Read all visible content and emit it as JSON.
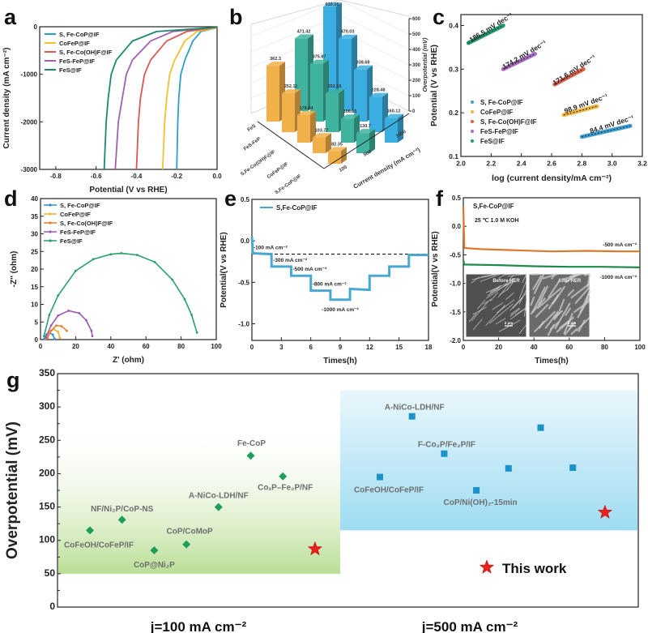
{
  "panel_labels": [
    "a",
    "b",
    "c",
    "d",
    "e",
    "f",
    "g"
  ],
  "chart_data": [
    {
      "panel": "a",
      "type": "line",
      "xlabel": "Potential (V vs RHE)",
      "ylabel": "Current density (mA cm⁻²)",
      "xlim": [
        -0.88,
        0.0
      ],
      "ylim": [
        -3000,
        0
      ],
      "xticks": [
        "-0.8",
        "-0.6",
        "-0.4",
        "-0.2",
        "0.0"
      ],
      "yticks": [
        "0",
        "-1000",
        "-2000",
        "-3000"
      ],
      "legend": "top-left",
      "series": [
        {
          "name": "S, Fe-CoP@IF",
          "color": "#2a9fc9",
          "points": [
            [
              0,
              -20
            ],
            [
              -0.08,
              -100
            ],
            [
              -0.12,
              -300
            ],
            [
              -0.16,
              -700
            ],
            [
              -0.18,
              -1000
            ],
            [
              -0.19,
              -1500
            ],
            [
              -0.195,
              -2000
            ],
            [
              -0.2,
              -3000
            ]
          ]
        },
        {
          "name": "CoFeP@IF",
          "color": "#f2c12e",
          "points": [
            [
              0,
              -20
            ],
            [
              -0.1,
              -100
            ],
            [
              -0.16,
              -300
            ],
            [
              -0.21,
              -700
            ],
            [
              -0.235,
              -1000
            ],
            [
              -0.25,
              -1500
            ],
            [
              -0.26,
              -2000
            ],
            [
              -0.27,
              -3000
            ]
          ]
        },
        {
          "name": "S, Fe-Co(OH)F@IF",
          "color": "#d9584f",
          "points": [
            [
              0,
              -10
            ],
            [
              -0.15,
              -100
            ],
            [
              -0.25,
              -300
            ],
            [
              -0.33,
              -700
            ],
            [
              -0.36,
              -1000
            ],
            [
              -0.38,
              -1500
            ],
            [
              -0.39,
              -2000
            ],
            [
              -0.4,
              -3000
            ]
          ]
        },
        {
          "name": "FeS-FeP@IF",
          "color": "#a05fb0",
          "points": [
            [
              0,
              -10
            ],
            [
              -0.22,
              -100
            ],
            [
              -0.33,
              -300
            ],
            [
              -0.42,
              -700
            ],
            [
              -0.45,
              -1000
            ],
            [
              -0.47,
              -1500
            ],
            [
              -0.49,
              -2000
            ],
            [
              -0.505,
              -3000
            ]
          ]
        },
        {
          "name": "FeS@IF",
          "color": "#1a8a6a",
          "points": [
            [
              0,
              -10
            ],
            [
              -0.3,
              -100
            ],
            [
              -0.42,
              -300
            ],
            [
              -0.5,
              -700
            ],
            [
              -0.525,
              -1000
            ],
            [
              -0.54,
              -1500
            ],
            [
              -0.55,
              -2000
            ],
            [
              -0.56,
              -3000
            ]
          ]
        }
      ]
    },
    {
      "panel": "b",
      "type": "bar3d",
      "zlabel": "Overpotential (mV)",
      "ylabel": "Current density (mA cm⁻²)",
      "zlim": [
        0,
        600
      ],
      "zticks": [
        "0",
        "100",
        "200",
        "300",
        "400",
        "500",
        "600"
      ],
      "categories": [
        "FeS",
        "FeS-FeP",
        "S,Fe-Co(OH)F@IF",
        "CoFeP@IF",
        "S,Fe-CoP@IF"
      ],
      "series": [
        {
          "name": "100",
          "color": "#f2b04a",
          "values": [
            362.3,
            252.11,
            178.84,
            103.77,
            82.35
          ]
        },
        {
          "name": "500",
          "color": "#3fb39d",
          "values": [
            471.42,
            375.87,
            252.15,
            156.85,
            130.7
          ]
        },
        {
          "name": "1000",
          "color": "#3aaee0",
          "values": [
            610.16,
            470.03,
            338.68,
            228.48,
            160.12
          ]
        }
      ]
    },
    {
      "panel": "c",
      "type": "scatter",
      "xlabel": "log (current density/mA cm⁻²)",
      "ylabel": "Potential (V vs RHE)",
      "xlim": [
        2.0,
        3.2
      ],
      "ylim": [
        0.1,
        0.425
      ],
      "xticks": [
        "2.0",
        "2.2",
        "2.4",
        "2.6",
        "2.8",
        "3.0",
        "3.2"
      ],
      "yticks": [
        "0.1",
        "0.2",
        "0.3",
        "0.4"
      ],
      "legend": "bottom-left",
      "series": [
        {
          "name": "S, Fe-CoP@IF",
          "color": "#3a9fd0",
          "points": [
            [
              2.8,
              0.145
            ],
            [
              3.12,
              0.17
            ]
          ],
          "label": "84.4 mV dec⁻¹"
        },
        {
          "name": "CoFeP@IF",
          "color": "#f0b73a",
          "points": [
            [
              2.68,
              0.195
            ],
            [
              2.9,
              0.215
            ]
          ],
          "label": "98.9 mV dec⁻¹"
        },
        {
          "name": "S, Fe-Co(OH)F@IF",
          "color": "#e0604a",
          "points": [
            [
              2.62,
              0.265
            ],
            [
              2.81,
              0.3
            ]
          ],
          "label": "171.6 mV dec⁻¹"
        },
        {
          "name": "FeS-FeP@IF",
          "color": "#a86cc0",
          "points": [
            [
              2.28,
              0.3
            ],
            [
              2.49,
              0.335
            ]
          ],
          "label": "174.2 mV dec⁻¹"
        },
        {
          "name": "FeS@IF",
          "color": "#1f9a72",
          "points": [
            [
              2.05,
              0.36
            ],
            [
              2.28,
              0.4
            ]
          ],
          "label": "186.5 mV dec⁻¹"
        }
      ]
    },
    {
      "panel": "d",
      "type": "scatter",
      "xlabel": "Z' (ohm)",
      "ylabel": "-Z'' (ohm)",
      "xlim": [
        0,
        100
      ],
      "ylim": [
        0,
        40
      ],
      "xticks": [
        "0",
        "20",
        "40",
        "60",
        "80",
        "100"
      ],
      "yticks": [
        "0",
        "5",
        "10",
        "15",
        "20",
        "25",
        "30",
        "35",
        "40"
      ],
      "legend": "top-left",
      "series": [
        {
          "name": "S, Fe-CoP@IF",
          "color": "#2f8fd0",
          "points": [
            [
              2,
              0.2
            ],
            [
              3.5,
              1.5
            ],
            [
              5,
              2
            ],
            [
              7,
              1.4
            ],
            [
              8,
              0.2
            ]
          ]
        },
        {
          "name": "CoFeP@IF",
          "color": "#f2b430",
          "points": [
            [
              3,
              0.3
            ],
            [
              5,
              2.2
            ],
            [
              7.5,
              3
            ],
            [
              10,
              2.2
            ],
            [
              11,
              0.5
            ]
          ]
        },
        {
          "name": "S, Fe-Co(OH)F@IF",
          "color": "#e67e30",
          "points": [
            [
              4,
              0.5
            ],
            [
              6,
              2.5
            ],
            [
              9,
              4
            ],
            [
              12,
              3.8
            ],
            [
              15,
              2.5
            ]
          ]
        },
        {
          "name": "FeS-FeP@IF",
          "color": "#9b59b6",
          "points": [
            [
              3,
              0.5
            ],
            [
              6,
              4
            ],
            [
              10,
              6.8
            ],
            [
              16,
              8.2
            ],
            [
              22,
              7.5
            ],
            [
              26,
              5.5
            ],
            [
              29,
              2.5
            ],
            [
              29.5,
              1
            ]
          ]
        },
        {
          "name": "FeS@IF",
          "color": "#27a06a",
          "points": [
            [
              2,
              1
            ],
            [
              5,
              7
            ],
            [
              10,
              12.5
            ],
            [
              20,
              19.5
            ],
            [
              30,
              22.8
            ],
            [
              40,
              24.2
            ],
            [
              46,
              24.5
            ],
            [
              55,
              24
            ],
            [
              65,
              22
            ],
            [
              75,
              17
            ],
            [
              82,
              11.5
            ],
            [
              86,
              7
            ],
            [
              89,
              2
            ]
          ]
        }
      ]
    },
    {
      "panel": "e",
      "type": "line",
      "xlabel": "Times(h)",
      "ylabel": "Potential(V vs RHE)",
      "xlim": [
        0,
        18
      ],
      "ylim": [
        -1.2,
        0.5
      ],
      "xticks": [
        "0",
        "3",
        "6",
        "9",
        "12",
        "15",
        "18"
      ],
      "yticks": [
        "-1.0",
        "-0.5",
        "0.0",
        "0.5"
      ],
      "legend": "top-left",
      "reference_line": -0.16,
      "series": [
        {
          "name": "S,Fe-CoP@IF",
          "color": "#4aa8d0",
          "points": [
            [
              0,
              0.05
            ],
            [
              0.1,
              -0.15
            ],
            [
              2,
              -0.16
            ],
            [
              2,
              -0.31
            ],
            [
              4,
              -0.31
            ],
            [
              4,
              -0.42
            ],
            [
              6,
              -0.42
            ],
            [
              6,
              -0.6
            ],
            [
              8,
              -0.6
            ],
            [
              8,
              -0.71
            ],
            [
              10,
              -0.71
            ],
            [
              10,
              -0.58
            ],
            [
              12,
              -0.59
            ],
            [
              12,
              -0.42
            ],
            [
              14,
              -0.42
            ],
            [
              14,
              -0.31
            ],
            [
              16,
              -0.31
            ],
            [
              16,
              -0.17
            ],
            [
              18,
              -0.17
            ]
          ]
        }
      ],
      "annotations": [
        {
          "text": "-100 mA cm⁻²",
          "x": 0,
          "y": -0.16
        },
        {
          "text": "-300 mA cm⁻²",
          "x": 2,
          "y": -0.31
        },
        {
          "text": "-500 mA cm⁻²",
          "x": 4,
          "y": -0.42
        },
        {
          "text": "-800 mA cm⁻²",
          "x": 6,
          "y": -0.6
        },
        {
          "text": "-1000 mA cm⁻²",
          "x": 9,
          "y": -0.71
        }
      ]
    },
    {
      "panel": "f",
      "type": "line",
      "xlabel": "Times(h)",
      "ylabel": "Potential(V vs RHE)",
      "xlim": [
        0,
        100
      ],
      "ylim": [
        -2.0,
        0.5
      ],
      "xticks": [
        "0",
        "20",
        "40",
        "60",
        "80",
        "100"
      ],
      "yticks": [
        "-2.0",
        "-1.5",
        "-1.0",
        "-0.5",
        "0.0",
        "0.5"
      ],
      "title": "S,Fe-CoP@IF",
      "condition": "25 ℃ 1.0 M KOH",
      "series": [
        {
          "name": "-500 mA cm⁻²",
          "color": "#e0782a",
          "points": [
            [
              0,
              0.35
            ],
            [
              0.6,
              -0.38
            ],
            [
              10,
              -0.4
            ],
            [
              30,
              -0.42
            ],
            [
              50,
              -0.44
            ],
            [
              70,
              -0.43
            ],
            [
              90,
              -0.44
            ],
            [
              100,
              -0.44
            ]
          ]
        },
        {
          "name": "-1000 mA cm⁻²",
          "color": "#1f8a4c",
          "points": [
            [
              0,
              -0.6
            ],
            [
              0.6,
              -0.67
            ],
            [
              20,
              -0.68
            ],
            [
              40,
              -0.7
            ],
            [
              60,
              -0.71
            ],
            [
              80,
              -0.71
            ],
            [
              100,
              -0.72
            ]
          ]
        }
      ],
      "insets": [
        {
          "label": "Before HER",
          "scale_bar": "2 μm"
        },
        {
          "label": "After HER",
          "scale_bar": "2 μm"
        }
      ]
    },
    {
      "panel": "g",
      "type": "scatter",
      "ylabel": "Overpotential (mV)",
      "ylim": [
        0,
        350
      ],
      "yticks": [
        "0",
        "50",
        "100",
        "150",
        "200",
        "250",
        "300",
        "350"
      ],
      "groups": [
        {
          "label": "j=100 mA cm⁻²",
          "band": [
            50,
            262
          ],
          "color": "#b9de94",
          "marker": "diamond",
          "marker_color": "#1e9e5a",
          "points": [
            {
              "name": "CoFeOH/CoFeP/IF",
              "y": 115
            },
            {
              "name": "NF/Ni₂P/CoP-NS",
              "y": 131
            },
            {
              "name": "CoP@Ni₂P",
              "y": 85
            },
            {
              "name": "CoP/CoMoP",
              "y": 94
            },
            {
              "name": "A-NiCo-LDH/NF",
              "y": 150
            },
            {
              "name": "Fe-CoP",
              "y": 227
            },
            {
              "name": "CoₓP–Fe₂P/NF",
              "y": 196
            },
            {
              "name": "",
              "y": 87,
              "this_work": true
            }
          ]
        },
        {
          "label": "j=500 mA cm⁻²",
          "band": [
            115,
            325
          ],
          "color": "#9fdcf2",
          "marker": "square",
          "marker_color": "#1b93c9",
          "points": [
            {
              "name": "CoFeOH/CoFeP/IF",
              "y": 195
            },
            {
              "name": "A-NiCo-LDH/NF",
              "y": 286
            },
            {
              "name": "F-Co₂P/Fe₂P/IF",
              "y": 230
            },
            {
              "name": "CoP/Ni(OH)₂-15min",
              "y": 175
            },
            {
              "name": "",
              "y": 208
            },
            {
              "name": "",
              "y": 269
            },
            {
              "name": "",
              "y": 209
            },
            {
              "name": "",
              "y": 142,
              "this_work": true
            }
          ]
        }
      ],
      "legend_label": "This work",
      "star_color": "#e8201e"
    }
  ]
}
